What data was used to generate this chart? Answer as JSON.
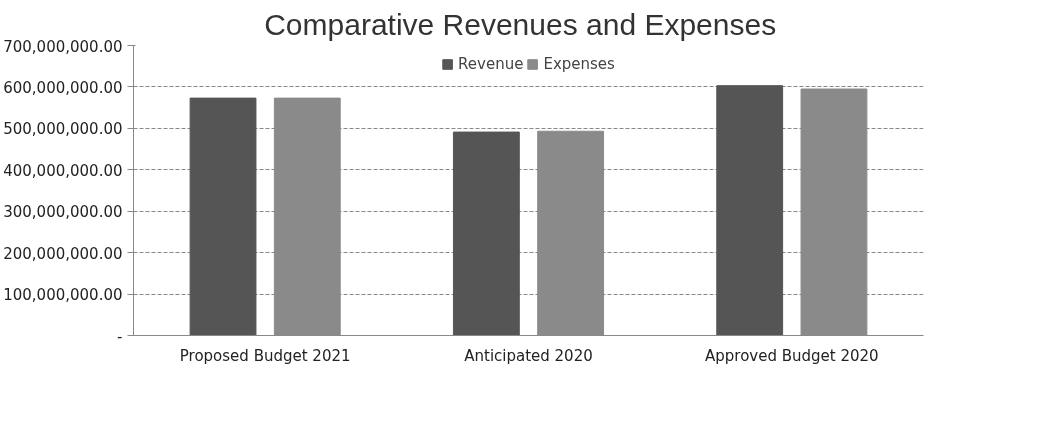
{
  "chart_data": {
    "type": "bar",
    "title": "Comparative Revenues   and Expenses",
    "categories": [
      "Proposed Budget 2021",
      "Anticipated 2020",
      "Approved Budget 2020"
    ],
    "series": [
      {
        "name": "Revenue",
        "color": "#555555",
        "values": [
          573000000,
          491000000,
          603000000
        ]
      },
      {
        "name": "Expenses",
        "color": "#8a8a8a",
        "values": [
          573000000,
          493000000,
          595000000
        ]
      }
    ],
    "ylim": [
      0,
      700000000
    ],
    "yticks": [
      {
        "value": 0,
        "label": "-"
      },
      {
        "value": 100000000,
        "label": "100,000,000.00"
      },
      {
        "value": 200000000,
        "label": "200,000,000.00"
      },
      {
        "value": 300000000,
        "label": "300,000,000.00"
      },
      {
        "value": 400000000,
        "label": "400,000,000.00"
      },
      {
        "value": 500000000,
        "label": "500,000,000.00"
      },
      {
        "value": 600000000,
        "label": "600,000,000.00"
      },
      {
        "value": 700000000,
        "label": "700,000,000.00"
      }
    ],
    "grid": "y",
    "legend": "top"
  }
}
